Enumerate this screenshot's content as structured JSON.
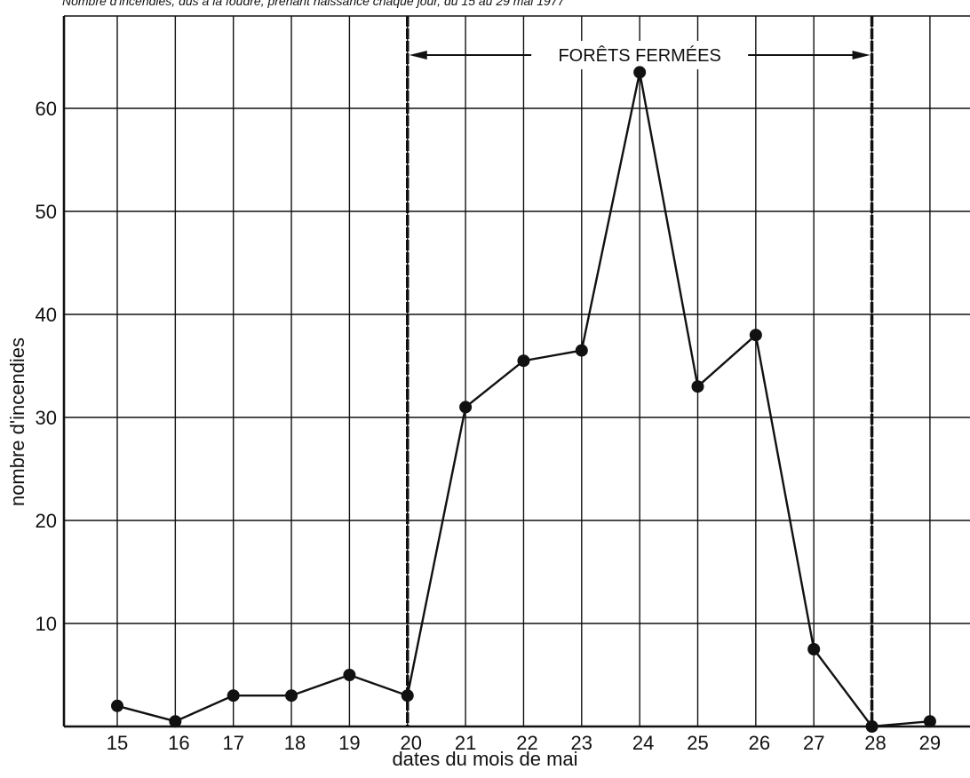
{
  "chart_data": {
    "type": "line",
    "title": "Nombre d'incendies, dus à la foudre, prenant naissance chaque jour, du 15 au 29 mai 1977",
    "xlabel": "dates du mois de mai",
    "ylabel": "nombre d'incendies",
    "x": [
      15,
      16,
      17,
      18,
      19,
      20,
      21,
      22,
      23,
      24,
      25,
      26,
      27,
      28,
      29
    ],
    "y": [
      2,
      0.5,
      3,
      3,
      5,
      3,
      31,
      35.5,
      36.5,
      63.5,
      33,
      38,
      7.5,
      0,
      0.5
    ],
    "x_ticks": [
      "15",
      "16",
      "17",
      "18",
      "19",
      "20",
      "21",
      "22",
      "23",
      "24",
      "25",
      "26",
      "27",
      "28",
      "29"
    ],
    "y_ticks": [
      "10",
      "20",
      "30",
      "40",
      "50",
      "60"
    ],
    "ylim": [
      0,
      70
    ],
    "grid": true,
    "annotation": {
      "text": "FORÊTS FERMÉES",
      "x_start": 20,
      "x_end": 28
    },
    "colors": {
      "line": "#111111",
      "grid": "#111111",
      "background": "#ffffff"
    }
  }
}
